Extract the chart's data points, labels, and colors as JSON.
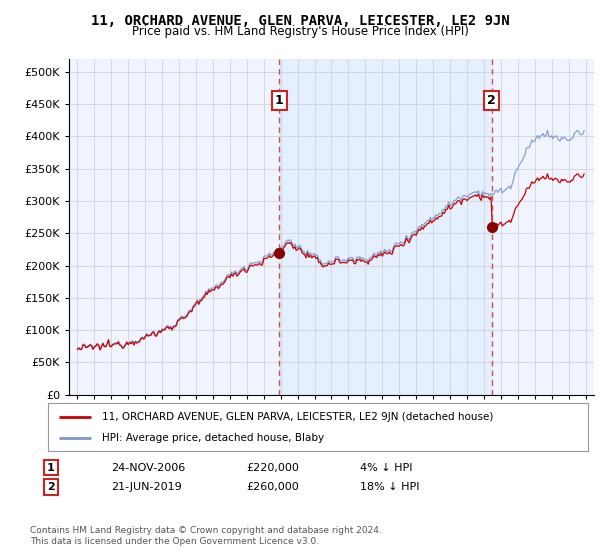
{
  "title": "11, ORCHARD AVENUE, GLEN PARVA, LEICESTER, LE2 9JN",
  "subtitle": "Price paid vs. HM Land Registry's House Price Index (HPI)",
  "legend_label_red": "11, ORCHARD AVENUE, GLEN PARVA, LEICESTER, LE2 9JN (detached house)",
  "legend_label_blue": "HPI: Average price, detached house, Blaby",
  "annotation1_label": "1",
  "annotation1_date": "24-NOV-2006",
  "annotation1_price": "£220,000",
  "annotation1_hpi": "4% ↓ HPI",
  "annotation2_label": "2",
  "annotation2_date": "21-JUN-2019",
  "annotation2_price": "£260,000",
  "annotation2_hpi": "18% ↓ HPI",
  "footer": "Contains HM Land Registry data © Crown copyright and database right 2024.\nThis data is licensed under the Open Government Licence v3.0.",
  "ylim": [
    0,
    520000
  ],
  "yticks": [
    0,
    50000,
    100000,
    150000,
    200000,
    250000,
    300000,
    350000,
    400000,
    450000,
    500000
  ],
  "background_color": "#ffffff",
  "chart_bg_color": "#f0f4ff",
  "shade_color": "#ddeeff",
  "grid_color": "#cccccc",
  "red_color": "#cc0000",
  "blue_color": "#7799cc",
  "vline_color": "#cc3333",
  "annotation_box_color": "#cc2222",
  "sale1_t": 2006.9167,
  "sale2_t": 2019.4583,
  "sale1_price": 220000,
  "sale2_price": 260000
}
